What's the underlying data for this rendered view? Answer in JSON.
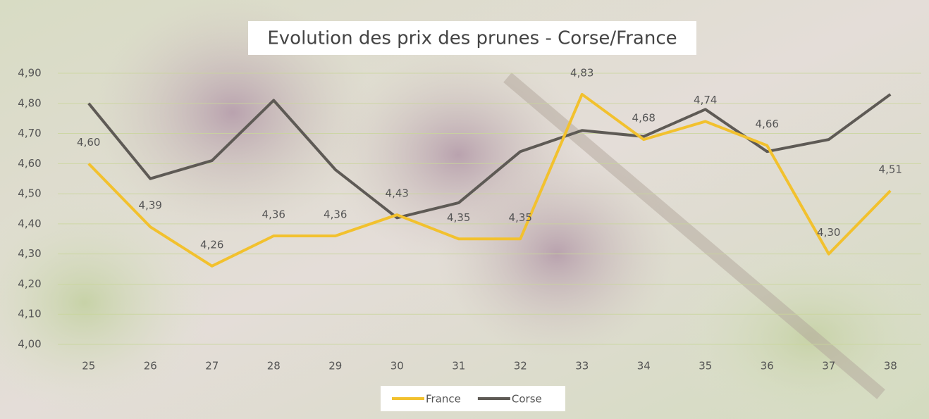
{
  "chart_data": {
    "type": "line",
    "title": "Evolution des prix des prunes - Corse/France",
    "categories": [
      "25",
      "26",
      "27",
      "28",
      "29",
      "30",
      "31",
      "32",
      "33",
      "34",
      "35",
      "36",
      "37",
      "38"
    ],
    "series": [
      {
        "name": "France",
        "color": "#f2c12e",
        "values": [
          4.6,
          4.39,
          4.26,
          4.36,
          4.36,
          4.43,
          4.35,
          4.35,
          4.83,
          4.68,
          4.74,
          4.66,
          4.3,
          4.51
        ],
        "value_labels": [
          "4,60",
          "4,39",
          "4,26",
          "4,36",
          "4,36",
          "4,43",
          "4,35",
          "4,35",
          "4,83",
          "4,68",
          "4,74",
          "4,66",
          "4,30",
          "4,51"
        ]
      },
      {
        "name": "Corse",
        "color": "#5e5a55",
        "values": [
          4.8,
          4.55,
          4.61,
          4.81,
          4.58,
          4.42,
          4.47,
          4.64,
          4.71,
          4.69,
          4.78,
          4.64,
          4.68,
          4.83
        ]
      }
    ],
    "ylim": [
      4.0,
      4.9
    ],
    "yticks": [
      {
        "value": 4.0,
        "label": "4,00"
      },
      {
        "value": 4.1,
        "label": "4,10"
      },
      {
        "value": 4.2,
        "label": "4,20"
      },
      {
        "value": 4.3,
        "label": "4,30"
      },
      {
        "value": 4.4,
        "label": "4,40"
      },
      {
        "value": 4.5,
        "label": "4,50"
      },
      {
        "value": 4.6,
        "label": "4,60"
      },
      {
        "value": 4.7,
        "label": "4,70"
      },
      {
        "value": 4.8,
        "label": "4,80"
      },
      {
        "value": 4.9,
        "label": "4,90"
      }
    ],
    "grid": true,
    "legend": "bottom"
  }
}
